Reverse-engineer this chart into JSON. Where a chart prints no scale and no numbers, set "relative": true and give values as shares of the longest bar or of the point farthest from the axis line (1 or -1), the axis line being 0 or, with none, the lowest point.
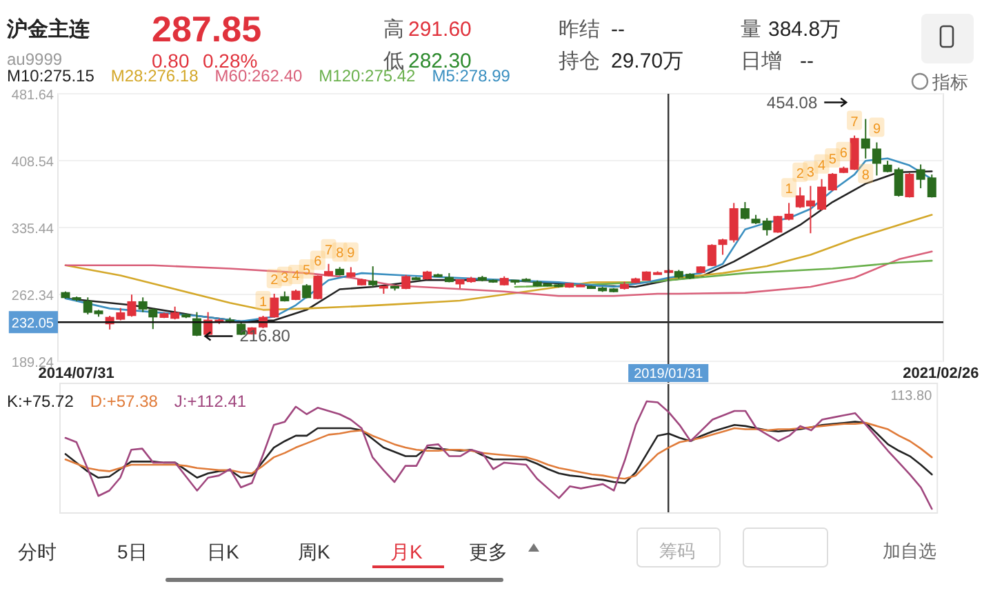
{
  "chart_data": [
    {
      "type": "other",
      "title": "沪金主连",
      "subtitle": "au9999",
      "annotations": [
        "287.85",
        "0.80",
        "0.28%",
        "高",
        "291.60",
        "低",
        "282.30",
        "昨结",
        "--",
        "持仓",
        "29.70万",
        "量",
        "384.8万",
        "日增",
        "--"
      ]
    },
    {
      "type": "candlestick",
      "x": [
        "2014-07",
        "2014-08",
        "2014-09",
        "2014-10",
        "2014-11",
        "2014-12",
        "2015-01",
        "2015-02",
        "2015-03",
        "2015-04",
        "2015-05",
        "2015-06",
        "2015-07",
        "2015-08",
        "2015-09",
        "2015-10",
        "2015-11",
        "2015-12",
        "2016-01",
        "2016-02",
        "2016-03",
        "2016-04",
        "2016-05",
        "2016-06",
        "2016-07",
        "2016-08",
        "2016-09",
        "2016-10",
        "2016-11",
        "2016-12",
        "2017-01",
        "2017-02",
        "2017-03",
        "2017-04",
        "2017-05",
        "2017-06",
        "2017-07",
        "2017-08",
        "2017-09",
        "2017-10",
        "2017-11",
        "2017-12",
        "2018-01",
        "2018-02",
        "2018-03",
        "2018-04",
        "2018-05",
        "2018-06",
        "2018-07",
        "2018-08",
        "2018-09",
        "2018-10",
        "2018-11",
        "2018-12",
        "2019-01",
        "2019-02",
        "2019-03",
        "2019-04",
        "2019-05",
        "2019-06",
        "2019-07",
        "2019-08",
        "2019-09",
        "2019-10",
        "2019-11",
        "2019-12",
        "2020-01",
        "2020-02",
        "2020-03",
        "2020-04",
        "2020-05",
        "2020-06",
        "2020-07",
        "2020-08",
        "2020-09",
        "2020-10",
        "2020-11",
        "2020-12",
        "2021-01",
        "2021-02"
      ],
      "ohlc": [
        [
          264.1,
          265.6,
          258.1,
          259.1
        ],
        [
          258.5,
          260,
          255,
          257.5
        ],
        [
          254.6,
          259.1,
          240.5,
          243.0
        ],
        [
          244,
          245.5,
          238,
          241.5
        ],
        [
          230.5,
          239.0,
          224.0,
          237.0
        ],
        [
          235.5,
          247.5,
          234.0,
          242.0
        ],
        [
          239.5,
          262.1,
          238.0,
          254.1
        ],
        [
          254.1,
          259.1,
          243.0,
          246.6
        ],
        [
          245.5,
          247.0,
          224.5,
          238.0
        ],
        [
          237.5,
          242.5,
          236.5,
          241.0
        ],
        [
          236.5,
          249.0,
          235.0,
          242.0
        ],
        [
          240.0,
          241.5,
          236.5,
          238.0
        ],
        [
          235.5,
          243.0,
          216.8,
          218.0
        ],
        [
          219.0,
          243.0,
          217.5,
          234.0
        ],
        [
          233,
          236,
          230,
          234
        ],
        [
          234,
          237,
          231,
          233.5
        ],
        [
          229.5,
          233.0,
          218.0,
          219.0
        ],
        [
          219.5,
          226.5,
          218.5,
          225.5
        ],
        [
          227.0,
          239.0,
          225.5,
          237.0
        ],
        [
          238.0,
          263.1,
          237.0,
          258.1
        ],
        [
          259.6,
          265.6,
          254.6,
          255.6
        ],
        [
          257.1,
          267.6,
          256.1,
          265.6
        ],
        [
          271.6,
          273.6,
          258.1,
          259.1
        ],
        [
          258.1,
          283.1,
          257.1,
          282.1
        ],
        [
          283.1,
          295.7,
          282.1,
          287.1
        ],
        [
          289.6,
          292.2,
          283.1,
          284.1
        ],
        [
          282.1,
          292.2,
          280.6,
          285.6
        ],
        [
          273.1,
          279.6,
          272.1,
          278.1
        ],
        [
          276.6,
          293.1,
          270.6,
          273.1
        ],
        [
          270.6,
          271.3,
          263.1,
          271.0
        ],
        [
          271.0,
          271.8,
          266.6,
          270.0
        ],
        [
          269.1,
          283.6,
          268.1,
          281.6
        ],
        [
          280.2,
          281.6,
          278.1,
          279.6
        ],
        [
          279.6,
          288.1,
          278.6,
          286.6
        ],
        [
          283.6,
          285.1,
          281.6,
          283.0
        ],
        [
          280.6,
          285.6,
          275.6,
          276.6
        ],
        [
          274.1,
          278.6,
          269.1,
          278.1
        ],
        [
          276.6,
          281.6,
          275.1,
          279.6
        ],
        [
          280.6,
          282.6,
          276.6,
          278.1
        ],
        [
          277.6,
          278.6,
          275.1,
          276.6
        ],
        [
          273.1,
          282.1,
          272.1,
          279.6
        ],
        [
          277.6,
          277.6,
          273.1,
          277.1
        ],
        [
          278.6,
          280.1,
          276.6,
          278.1
        ],
        [
          275.6,
          277.6,
          271.1,
          272.1
        ],
        [
          273.6,
          274.6,
          271.1,
          273.1
        ],
        [
          272.6,
          273.6,
          270.1,
          272.1
        ],
        [
          270.6,
          274.6,
          269.6,
          274.1
        ],
        [
          272.1,
          273.6,
          271.1,
          272.4
        ],
        [
          270.6,
          272.1,
          269.1,
          270.3
        ],
        [
          269.1,
          270.6,
          265.1,
          266.6
        ],
        [
          268.1,
          269.1,
          264.6,
          265.6
        ],
        [
          269.1,
          276.1,
          267.6,
          273.1
        ],
        [
          275.6,
          280.6,
          274.6,
          279.1
        ],
        [
          278.1,
          287.6,
          277.6,
          286.6
        ],
        [
          285.6,
          287.6,
          284.6,
          285.9
        ],
        [
          287.1,
          290.1,
          285.6,
          288.1
        ],
        [
          287.1,
          289.1,
          279.6,
          281.6
        ],
        [
          284.1,
          285.6,
          279.1,
          280.6
        ],
        [
          286.6,
          293.1,
          286.6,
          292.2
        ],
        [
          294.2,
          317.2,
          293.2,
          315.7
        ],
        [
          317.2,
          323.2,
          305.7,
          321.7
        ],
        [
          322.2,
          362.3,
          319.2,
          355.8
        ],
        [
          355.8,
          363.3,
          344.3,
          345.8
        ],
        [
          344.3,
          349.3,
          339.3,
          340.8
        ],
        [
          342.3,
          345.8,
          326.7,
          333.3
        ],
        [
          330.7,
          348.3,
          329.7,
          347.3
        ],
        [
          344.8,
          362.3,
          343.3,
          349.8
        ],
        [
          358.3,
          379.4,
          356.8,
          369.8
        ],
        [
          359.3,
          380.9,
          329.2,
          364.3
        ],
        [
          355.8,
          388.4,
          354.3,
          379.4
        ],
        [
          376.9,
          395.0,
          375.4,
          393.4
        ],
        [
          395.9,
          402.0,
          394.9,
          399.9
        ],
        [
          399.4,
          436.0,
          398.4,
          432.5
        ],
        [
          432.0,
          454.08,
          410.9,
          422.5
        ],
        [
          421.0,
          428.5,
          392.4,
          405.9
        ],
        [
          403.4,
          408.4,
          395.9,
          396.9
        ],
        [
          398.4,
          400.9,
          369.3,
          370.8
        ],
        [
          369.3,
          395.0,
          368.3,
          393.4
        ],
        [
          398.4,
          404.4,
          378.4,
          388.4
        ],
        [
          389.4,
          393.4,
          368.3,
          369.3
        ]
      ],
      "series": [
        {
          "type": "line",
          "name": "M10:275.15",
          "color": "#222222",
          "x": [
            "2014-07",
            "2015-01",
            "2015-07",
            "2015-11",
            "2016-02",
            "2016-05",
            "2016-08",
            "2016-11",
            "2017-04",
            "2017-11",
            "2018-07",
            "2018-11",
            "2019-02",
            "2019-05",
            "2019-08",
            "2019-11",
            "2020-02",
            "2020-05",
            "2020-08",
            "2020-11",
            "2021-02"
          ],
          "values": [
            258,
            250.6,
            239,
            233,
            234,
            245.5,
            268,
            270.6,
            278.1,
            278.1,
            272.1,
            270.6,
            278,
            281.6,
            298.2,
            318.2,
            338.3,
            363.3,
            383.4,
            395.9,
            396.9
          ]
        },
        {
          "type": "line",
          "name": "M28:276.18",
          "color": "#d4a82a",
          "x": [
            "2014-07",
            "2014-12",
            "2015-05",
            "2015-10",
            "2016-01",
            "2016-05",
            "2016-10",
            "2017-01",
            "2017-07",
            "2018-01",
            "2018-07",
            "2018-12",
            "2019-03",
            "2019-07",
            "2019-11",
            "2020-03",
            "2020-07",
            "2020-11",
            "2021-02"
          ],
          "values": [
            294.2,
            283.1,
            268.1,
            253.1,
            245.5,
            247,
            249.6,
            251.5,
            255.6,
            265.6,
            275.6,
            275.6,
            280.6,
            285.6,
            293.2,
            305.7,
            323.2,
            338.3,
            349.3
          ]
        },
        {
          "type": "line",
          "name": "M60:262.40",
          "color": "#d9607a",
          "x": [
            "2014-07",
            "2015-03",
            "2015-10",
            "2016-05",
            "2016-09",
            "2017-01",
            "2017-11",
            "2018-04",
            "2018-09",
            "2019-01",
            "2019-03",
            "2019-09",
            "2020-03",
            "2020-07",
            "2020-11",
            "2021-02"
          ],
          "values": [
            294.2,
            294.2,
            290.6,
            285.6,
            280.6,
            272.1,
            265.6,
            260.6,
            260.6,
            263.1,
            263.1,
            264.1,
            270.6,
            280.6,
            300.7,
            309.2
          ]
        },
        {
          "type": "line",
          "name": "M120:275.42",
          "color": "#6ab04c",
          "x": [
            "2017-12",
            "2018-07",
            "2019-01",
            "2019-09",
            "2020-05",
            "2020-11",
            "2021-02"
          ],
          "values": [
            270.6,
            273.1,
            276.6,
            285.6,
            290.6,
            297.2,
            299.2
          ]
        },
        {
          "type": "line",
          "name": "M5:278.99",
          "color": "#3a8fc0",
          "x": [
            "2014-07",
            "2014-11",
            "2015-03",
            "2015-07",
            "2015-11",
            "2016-02",
            "2016-04",
            "2016-07",
            "2016-10",
            "2017-02",
            "2017-11",
            "2018-04",
            "2018-09",
            "2018-12",
            "2019-02",
            "2019-05",
            "2019-07",
            "2019-09",
            "2019-11",
            "2020-01",
            "2020-03",
            "2020-05",
            "2020-07",
            "2020-08",
            "2020-10",
            "2020-12",
            "2021-02"
          ],
          "values": [
            258,
            247,
            243,
            239,
            233,
            238,
            250.6,
            278,
            285.6,
            283.1,
            278.1,
            275.6,
            270.6,
            275.6,
            280.6,
            285.6,
            295.7,
            333.3,
            340.8,
            345.8,
            355.8,
            375.9,
            393.4,
            408.4,
            411,
            403.4,
            388.4
          ]
        }
      ],
      "xlim": [
        "2014-06-10",
        "2021-03-05"
      ],
      "xticks": [
        {
          "value": "2014-07-31",
          "label": "2014/07/31"
        },
        {
          "value": "2021-02-26",
          "label": "2021/02/26"
        }
      ],
      "ylim": [
        189.24,
        481.64
      ],
      "yticks": [
        481.64,
        408.54,
        335.44,
        262.34,
        189.24
      ],
      "grid": "y",
      "legend": "top left",
      "ref_lines": [
        {
          "axis": "y",
          "value": 232.05,
          "label": "232.05",
          "color": "#111111"
        },
        {
          "axis": "x",
          "value": "2019-01-31",
          "label": "2019/01/31",
          "color": "#333333"
        }
      ],
      "annotations": [
        {
          "text": "1",
          "x": "2016-01",
          "y": 239.0
        },
        {
          "text": "2",
          "x": "2016-02",
          "y": 263.1
        },
        {
          "text": "3",
          "x": "2016-03",
          "y": 265.6
        },
        {
          "text": "4",
          "x": "2016-04",
          "y": 267.6
        },
        {
          "text": "5",
          "x": "2016-05",
          "y": 273.6
        },
        {
          "text": "6",
          "x": "2016-06",
          "y": 283.1
        },
        {
          "text": "7",
          "x": "2016-07",
          "y": 295.7
        },
        {
          "text": "8",
          "x": "2016-08",
          "y": 292.2
        },
        {
          "text": "9",
          "x": "2016-09",
          "y": 292.2
        },
        {
          "text": "1",
          "x": "2020-01",
          "y": 362.3
        },
        {
          "text": "2",
          "x": "2020-02",
          "y": 379.4
        },
        {
          "text": "3",
          "x": "2020-03",
          "y": 380.9
        },
        {
          "text": "4",
          "x": "2020-04",
          "y": 388.4
        },
        {
          "text": "5",
          "x": "2020-05",
          "y": 395.0
        },
        {
          "text": "6",
          "x": "2020-06",
          "y": 402.0
        },
        {
          "text": "7",
          "x": "2020-07",
          "y": 436.0
        },
        {
          "text": "8",
          "x": "2020-08",
          "y": 410.9
        },
        {
          "text": "9",
          "x": "2020-09",
          "y": 428.5
        },
        {
          "text": "216.80",
          "x": "2015-07",
          "y": 216.8
        },
        {
          "text": "454.08",
          "x": "2020-08",
          "y": 454.08
        }
      ]
    },
    {
      "type": "line",
      "relative": true,
      "categories": [
        null,
        null,
        null,
        null,
        null,
        null,
        null,
        null,
        null,
        null,
        null,
        null,
        null,
        null,
        null,
        null,
        null,
        null,
        null,
        null,
        null,
        null,
        null,
        null,
        null,
        null,
        null,
        null,
        null,
        null,
        null,
        null,
        null,
        null,
        null,
        null,
        null,
        null,
        null,
        null,
        null,
        null,
        null,
        null,
        null,
        null,
        null,
        null,
        null,
        null,
        null,
        null,
        null,
        null,
        null,
        null,
        null,
        null,
        null,
        null,
        null,
        null,
        null,
        null,
        null,
        null,
        null,
        null,
        null,
        null,
        null,
        null,
        null,
        null,
        null,
        null,
        null,
        null,
        null,
        null
      ],
      "annotations": [
        "113.80"
      ],
      "series": [
        {
          "type": "line",
          "name": "K:+75.72",
          "color": "#222222",
          "values": [
            0.51,
            0.43,
            0.35,
            0.29,
            0.3,
            0.37,
            0.44,
            0.44,
            0.44,
            0.43,
            0.43,
            0.36,
            0.29,
            0.33,
            0.35,
            0.36,
            0.29,
            0.31,
            0.44,
            0.57,
            0.63,
            0.68,
            0.68,
            0.75,
            0.75,
            0.75,
            0.75,
            0.73,
            0.65,
            0.57,
            0.53,
            0.49,
            0.49,
            0.57,
            0.56,
            0.55,
            0.54,
            0.55,
            0.5,
            0.46,
            0.46,
            0.46,
            0.46,
            0.42,
            0.37,
            0.33,
            0.31,
            0.3,
            0.28,
            0.27,
            0.25,
            0.24,
            0.34,
            0.51,
            0.68,
            0.7,
            0.66,
            0.63,
            0.68,
            0.72,
            0.75,
            0.78,
            0.77,
            0.75,
            0.73,
            0.72,
            0.73,
            0.74,
            0.76,
            0.78,
            0.79,
            0.8,
            0.81,
            0.8,
            0.7,
            0.6,
            0.54,
            0.49,
            0.41,
            0.32
          ]
        },
        {
          "type": "line",
          "name": "D:+57.38",
          "color": "#e07b39",
          "values": [
            0.46,
            0.42,
            0.38,
            0.36,
            0.35,
            0.38,
            0.41,
            0.41,
            0.41,
            0.41,
            0.41,
            0.4,
            0.38,
            0.37,
            0.36,
            0.36,
            0.34,
            0.33,
            0.4,
            0.48,
            0.52,
            0.57,
            0.61,
            0.65,
            0.69,
            0.7,
            0.72,
            0.73,
            0.68,
            0.64,
            0.6,
            0.57,
            0.55,
            0.54,
            0.54,
            0.55,
            0.55,
            0.54,
            0.52,
            0.51,
            0.5,
            0.49,
            0.48,
            0.45,
            0.41,
            0.38,
            0.36,
            0.34,
            0.32,
            0.31,
            0.29,
            0.28,
            0.31,
            0.41,
            0.51,
            0.57,
            0.62,
            0.64,
            0.66,
            0.69,
            0.72,
            0.75,
            0.74,
            0.74,
            0.73,
            0.74,
            0.74,
            0.75,
            0.76,
            0.77,
            0.78,
            0.79,
            0.79,
            0.8,
            0.77,
            0.74,
            0.68,
            0.63,
            0.56,
            0.48
          ]
        },
        {
          "type": "line",
          "name": "J:+112.41",
          "color": "#a0467e",
          "values": [
            0.66,
            0.62,
            0.38,
            0.12,
            0.17,
            0.29,
            0.55,
            0.56,
            0.43,
            0.43,
            0.43,
            0.3,
            0.17,
            0.29,
            0.31,
            0.37,
            0.2,
            0.24,
            0.5,
            0.78,
            0.81,
            0.95,
            0.88,
            0.94,
            0.91,
            0.88,
            0.83,
            0.75,
            0.48,
            0.36,
            0.25,
            0.4,
            0.4,
            0.59,
            0.6,
            0.49,
            0.49,
            0.55,
            0.52,
            0.37,
            0.43,
            0.42,
            0.41,
            0.28,
            0.19,
            0.1,
            0.21,
            0.19,
            0.21,
            0.23,
            0.17,
            0.45,
            0.78,
            1.0,
            0.99,
            0.9,
            0.78,
            0.63,
            0.73,
            0.83,
            0.87,
            0.91,
            0.91,
            0.75,
            0.69,
            0.63,
            0.68,
            0.77,
            0.73,
            0.83,
            0.85,
            0.87,
            0.89,
            0.78,
            0.66,
            0.54,
            0.43,
            0.32,
            0.2,
            0
          ]
        }
      ]
    },
    {
      "type": "other",
      "annotations": [
        "指标",
        "分时",
        "5日",
        "日K",
        "周K",
        "月K",
        "更多",
        "筹码",
        "加自选"
      ]
    }
  ]
}
